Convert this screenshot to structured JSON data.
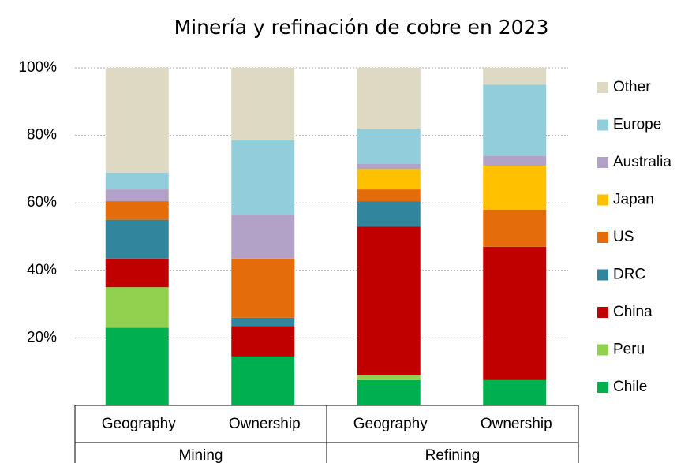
{
  "chart_data": {
    "type": "stacked_bar",
    "title": "Minería y refinación de cobre en 2023",
    "categories": [
      "Geography",
      "Ownership",
      "Geography",
      "Ownership"
    ],
    "groups": [
      "Mining",
      "Refining"
    ],
    "ylim": [
      0,
      100
    ],
    "yticks": [
      {
        "value": 20,
        "label": "20%"
      },
      {
        "value": 40,
        "label": "40%"
      },
      {
        "value": 60,
        "label": "60%"
      },
      {
        "value": 80,
        "label": "80%"
      },
      {
        "value": 100,
        "label": "100%"
      }
    ],
    "grid": true,
    "legend": "right",
    "series": [
      {
        "name": "Chile",
        "color": "#00b050",
        "values": [
          23,
          14.5,
          7.5,
          7.5
        ]
      },
      {
        "name": "Peru",
        "color": "#92d050",
        "values": [
          12,
          0,
          1.5,
          0
        ]
      },
      {
        "name": "China",
        "color": "#c00000",
        "values": [
          8.5,
          9,
          44,
          39.5
        ]
      },
      {
        "name": "DRC",
        "color": "#31859c",
        "values": [
          11.5,
          2.5,
          7.5,
          0
        ]
      },
      {
        "name": "US",
        "color": "#e46c0a",
        "values": [
          5.5,
          17.5,
          3.5,
          11
        ]
      },
      {
        "name": "Japan",
        "color": "#ffc000",
        "values": [
          0,
          0,
          6,
          13
        ]
      },
      {
        "name": "Australia",
        "color": "#b3a2c7",
        "values": [
          3.5,
          13,
          1.5,
          3
        ]
      },
      {
        "name": "Europe",
        "color": "#92cddc",
        "values": [
          5,
          22,
          10.5,
          21
        ]
      },
      {
        "name": "Other",
        "color": "#ddd9c3",
        "values": [
          31,
          21.5,
          18,
          5
        ]
      }
    ]
  }
}
